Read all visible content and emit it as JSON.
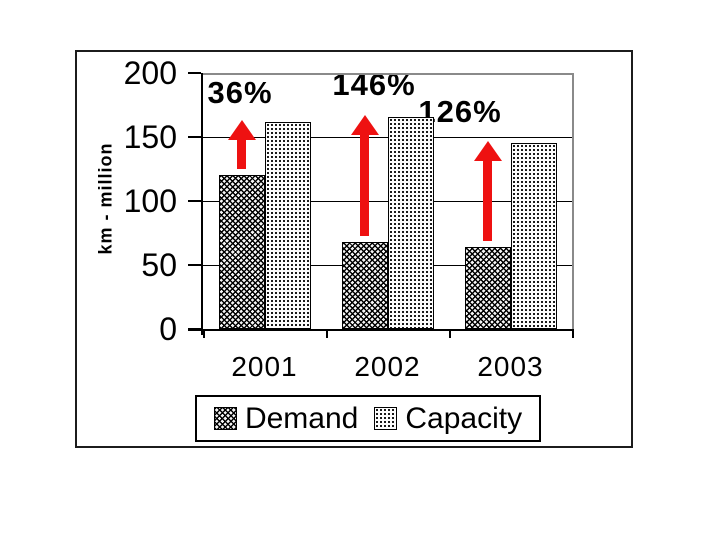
{
  "chart_data": {
    "type": "bar",
    "title": "",
    "xlabel": "",
    "ylabel": "km - million",
    "categories": [
      "2001",
      "2002",
      "2003"
    ],
    "series": [
      {
        "name": "Demand",
        "values": [
          120,
          68,
          64
        ],
        "pattern": "dark-diagonal-crosshatch"
      },
      {
        "name": "Capacity",
        "values": [
          162,
          166,
          145
        ],
        "pattern": "light-dots"
      }
    ],
    "annotations": [
      {
        "text": "36%",
        "category": "2001"
      },
      {
        "text": "146%",
        "category": "2002"
      },
      {
        "text": "126%",
        "category": "2003"
      }
    ],
    "yticks": [
      "200",
      "150",
      "100",
      "50",
      "0"
    ],
    "ylim": [
      0,
      200
    ],
    "grid": true,
    "legend_position": "bottom",
    "arrow_color": "#ee1111",
    "axis_color": "#000000",
    "plot_border_color": "#8a8a8a",
    "text_color": "#000000"
  }
}
